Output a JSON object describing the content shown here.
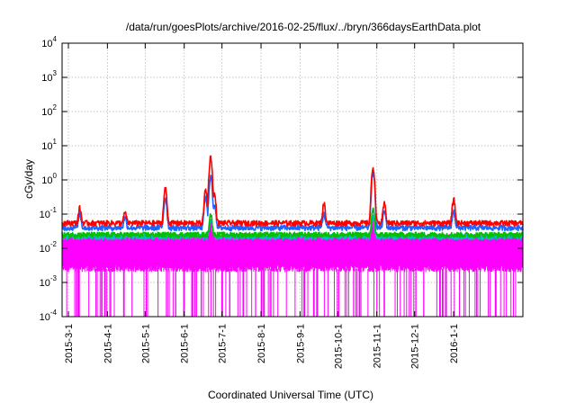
{
  "chart_data": {
    "type": "line",
    "title": "/data/run/goesPlots/archive/2016-02-25/flux/../bryn/366daysEarthData.plot",
    "xlabel": "Coordinated Universal Time (UTC)",
    "ylabel": "cGy/day",
    "yscale": "log",
    "ylim": [
      0.0001,
      10000
    ],
    "xlim": [
      "2015-02-24",
      "2016-02-25"
    ],
    "grid": true,
    "legend": "none",
    "y_ticks": [
      {
        "base": "10",
        "exp": "-4",
        "value": 0.0001
      },
      {
        "base": "10",
        "exp": "-3",
        "value": 0.001
      },
      {
        "base": "10",
        "exp": "-2",
        "value": 0.01
      },
      {
        "base": "10",
        "exp": "-1",
        "value": 0.1
      },
      {
        "base": "10",
        "exp": "0",
        "value": 1
      },
      {
        "base": "10",
        "exp": "1",
        "value": 10
      },
      {
        "base": "10",
        "exp": "2",
        "value": 100
      },
      {
        "base": "10",
        "exp": "3",
        "value": 1000
      },
      {
        "base": "10",
        "exp": "4",
        "value": 10000
      }
    ],
    "x_ticks": [
      "2015-3-1",
      "2015-4-1",
      "2015-5-1",
      "2015-6-1",
      "2015-7-1",
      "2015-8-1",
      "2015-9-1",
      "2015-10-1",
      "2015-11-1",
      "2015-12-1",
      "2016-1-1"
    ],
    "series": [
      {
        "color": "#ff0000",
        "baseline": 0.055,
        "peaks": [
          [
            "2015-03-10",
            0.15
          ],
          [
            "2015-04-15",
            0.11
          ],
          [
            "2015-05-17",
            0.55
          ],
          [
            "2015-06-18",
            0.5
          ],
          [
            "2015-06-22",
            4.6
          ],
          [
            "2015-06-25",
            0.38
          ],
          [
            "2015-09-20",
            0.2
          ],
          [
            "2015-10-29",
            2.3
          ],
          [
            "2015-11-07",
            0.2
          ],
          [
            "2016-01-01",
            0.27
          ]
        ]
      },
      {
        "color": "#1e64ff",
        "baseline": 0.04,
        "peaks": [
          [
            "2015-03-10",
            0.1
          ],
          [
            "2015-04-15",
            0.08
          ],
          [
            "2015-05-17",
            0.3
          ],
          [
            "2015-06-18",
            0.3
          ],
          [
            "2015-06-22",
            1.3
          ],
          [
            "2015-06-25",
            0.2
          ],
          [
            "2015-09-20",
            0.1
          ],
          [
            "2015-10-29",
            1.6
          ],
          [
            "2015-11-07",
            0.12
          ],
          [
            "2016-01-01",
            0.12
          ]
        ]
      },
      {
        "color": "#00c000",
        "baseline": 0.025,
        "peaks": [
          [
            "2015-06-22",
            0.1
          ],
          [
            "2015-10-29",
            0.13
          ]
        ]
      },
      {
        "color": "#00c0c0",
        "baseline": 0.022,
        "peaks": [
          [
            "2015-06-22",
            0.07
          ],
          [
            "2015-10-29",
            0.08
          ]
        ]
      },
      {
        "color": "#ff00ff",
        "baseline": 0.02,
        "low": 0.0025,
        "dropout_floor": 0.0001,
        "peaks": [
          [
            "2015-06-22",
            0.06
          ],
          [
            "2015-10-29",
            0.07
          ]
        ]
      }
    ]
  }
}
